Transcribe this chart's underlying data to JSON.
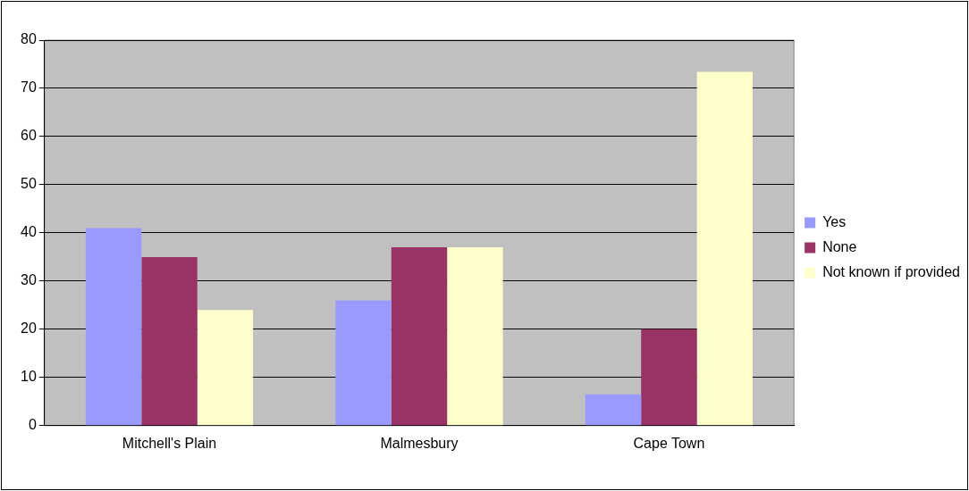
{
  "chart_data": {
    "type": "bar",
    "categories": [
      "Mitchell's Plain",
      "Malmesbury",
      "Cape Town"
    ],
    "series": [
      {
        "name": "Yes",
        "color": "#9999ff",
        "values": [
          41,
          26,
          6.5
        ]
      },
      {
        "name": "None",
        "color": "#993366",
        "values": [
          35,
          37,
          20
        ]
      },
      {
        "name": "Not known if provided",
        "color": "#ffffcc",
        "values": [
          24,
          37,
          73.4
        ]
      }
    ],
    "ylim": [
      0,
      80
    ],
    "yticks": [
      0,
      10,
      20,
      30,
      40,
      50,
      60,
      70,
      80
    ],
    "grid": "y",
    "legend": "right"
  }
}
